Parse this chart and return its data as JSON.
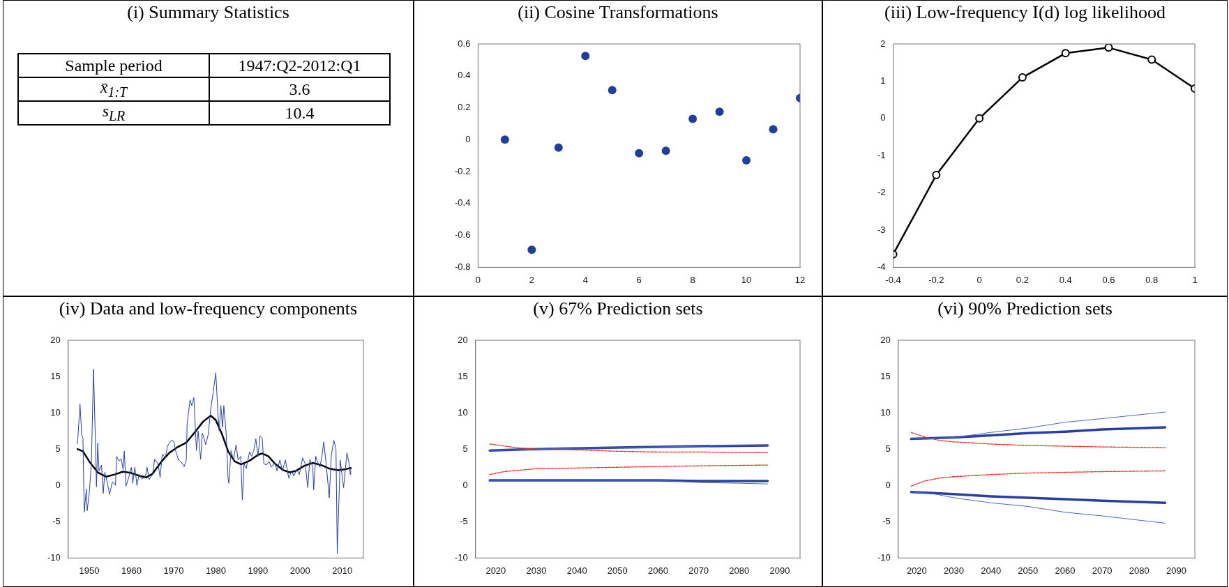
{
  "chart_data": [
    {
      "type": "other",
      "title": "(i) Summary Statistics",
      "annotations": [
        "Sample period",
        "1947:Q2-2012:Q1",
        "x̄$_{1:T}$",
        "3.6",
        "s$_{LR}$",
        "10.4"
      ]
    },
    {
      "type": "scatter",
      "title": "(ii) Cosine Transformations",
      "x": [
        1,
        2,
        3,
        4,
        5,
        6,
        7,
        8,
        9,
        10,
        11,
        12
      ],
      "marker": "circle",
      "xlim": [
        0,
        12
      ],
      "xticks": [
        0,
        2,
        4,
        6,
        8,
        10,
        12
      ],
      "ylim": [
        -0.8,
        0.6
      ],
      "yticks": [
        -0.8,
        -0.6,
        -0.4,
        -0.2,
        0,
        0.2,
        0.4,
        0.6
      ],
      "series": [
        {
          "color": "#1f3f99",
          "values": [
            0,
            -0.69,
            -0.05,
            0.525,
            0.31,
            -0.085,
            -0.07,
            0.13,
            0.175,
            -0.13,
            0.065,
            0.26
          ]
        }
      ]
    },
    {
      "type": "line",
      "title": "(iii) Low-frequency I(d) log likelihood",
      "x": [
        -0.4,
        -0.2,
        0,
        0.2,
        0.4,
        0.6,
        0.8,
        1
      ],
      "marker": "circle",
      "xlim": [
        -0.4,
        1
      ],
      "xticks": [
        -0.4,
        -0.2,
        0,
        0.2,
        0.4,
        0.6,
        0.8,
        1
      ],
      "ylim": [
        -4,
        2
      ],
      "yticks": [
        -4,
        -3,
        -2,
        -1,
        0,
        1,
        2
      ],
      "series": [
        {
          "color": "#000000",
          "values": [
            -3.65,
            -1.52,
            0,
            1.1,
            1.75,
            1.9,
            1.58,
            0.8
          ]
        }
      ]
    },
    {
      "type": "line",
      "title": "(iv) Data and low-frequency components",
      "xlim": [
        1945,
        2015
      ],
      "xticks": [
        1950,
        1960,
        1970,
        1980,
        1990,
        2000,
        2010
      ],
      "ylim": [
        -10,
        20
      ],
      "yticks": [
        -10,
        -5,
        0,
        5,
        10,
        15,
        20
      ],
      "series": [
        {
          "color": "#2940a0",
          "x": [
            1947.2,
            1947.8,
            1948.2,
            1948.5,
            1948.8,
            1949.3,
            1949.5,
            1950.0,
            1950.5,
            1951.0,
            1951.5,
            1951.7,
            1952.0,
            1952.3,
            1952.9,
            1953.3,
            1953.7,
            1954.3,
            1954.8,
            1955.5,
            1956.2,
            1956.5,
            1957.0,
            1957.6,
            1958.0,
            1958.3,
            1958.7,
            1959.3,
            1960.0,
            1960.3,
            1960.8,
            1961.3,
            1961.8,
            1962.5,
            1963.3,
            1963.7,
            1964.2,
            1965.0,
            1965.5,
            1966.3,
            1966.8,
            1967.3,
            1968.0,
            1968.6,
            1969.5,
            1970.0,
            1970.6,
            1971.2,
            1971.8,
            1972.5,
            1973.0,
            1973.2,
            1973.9,
            1974.3,
            1974.8,
            1975.4,
            1975.8,
            1976.4,
            1976.8,
            1977.2,
            1977.6,
            1978.2,
            1978.8,
            1979.3,
            1980.0,
            1980.5,
            1980.8,
            1981.2,
            1981.6,
            1981.9,
            1982.5,
            1982.9,
            1983.1,
            1983.6,
            1984.2,
            1984.8,
            1985.3,
            1985.9,
            1986.3,
            1986.7,
            1987.2,
            1988.0,
            1988.5,
            1989.0,
            1989.5,
            1990.0,
            1990.5,
            1991.0,
            1991.4,
            1992.0,
            1992.6,
            1993.2,
            1994.0,
            1994.5,
            1995.2,
            1995.8,
            1996.5,
            1997.3,
            1998.0,
            1998.5,
            1999.2,
            1999.8,
            2000.6,
            2001.2,
            2001.8,
            2002.3,
            2003.0,
            2003.2,
            2003.7,
            2004.1,
            2004.7,
            2005.2,
            2005.6,
            2006.2,
            2006.9,
            2007.4,
            2008.0,
            2008.5,
            2008.8,
            2009.5,
            2010.3,
            2011.1,
            2011.6,
            2011.9,
            2012.0
          ],
          "values": [
            5.7,
            11.2,
            7,
            6.5,
            -3.7,
            -0.5,
            -3.5,
            -1,
            3,
            16,
            5,
            -0.2,
            5.8,
            2,
            2.8,
            -1.1,
            1.8,
            0.3,
            -1.2,
            0.5,
            0,
            4,
            3.4,
            3.6,
            2.2,
            4.7,
            -0.1,
            1,
            2.5,
            0.3,
            2.5,
            0,
            1.5,
            0.9,
            1.2,
            2.5,
            0.8,
            1.5,
            3.6,
            3,
            1.1,
            4.3,
            3.8,
            5.5,
            6.2,
            6.1,
            4.5,
            3.5,
            3.2,
            2.6,
            3.5,
            8.5,
            11.8,
            11,
            12.1,
            4.8,
            7.5,
            3.6,
            7.2,
            6.5,
            5.6,
            7,
            10.5,
            12.5,
            15.5,
            10,
            7.5,
            11,
            8,
            11,
            6.8,
            1,
            0.3,
            4.8,
            3.5,
            5.6,
            3.5,
            4,
            -2,
            3,
            2.3,
            4.6,
            4,
            4.8,
            6.4,
            4,
            6.8,
            6.5,
            3,
            2.8,
            3.3,
            2.5,
            3.2,
            2,
            3.5,
            2,
            3.5,
            1,
            2,
            1.3,
            2.2,
            1.5,
            3.8,
            3,
            -0.3,
            3.6,
            2.5,
            -0.6,
            4,
            3.2,
            2.5,
            4.2,
            6,
            2.8,
            -1.7,
            4.2,
            6.2,
            5,
            -9.4,
            3.5,
            -0.3,
            4.5,
            3,
            1.5,
            2.3
          ]
        },
        {
          "color": "#000000",
          "x": [
            1947.2,
            1948.5,
            1950,
            1952,
            1954,
            1956,
            1958,
            1960,
            1962,
            1963.5,
            1965,
            1967,
            1969,
            1971,
            1973,
            1975,
            1977,
            1978.8,
            1980,
            1981.5,
            1983,
            1984.5,
            1986,
            1988,
            1990,
            1991,
            1992.5,
            1994,
            1996,
            1997.5,
            1999,
            2001,
            2003,
            2005,
            2007,
            2009,
            2010.5,
            2012
          ],
          "values": [
            5,
            4.7,
            3.3,
            1.8,
            1.2,
            1.5,
            1.9,
            1.7,
            1.3,
            1.1,
            1.6,
            3.2,
            4.5,
            5.3,
            5.9,
            7.3,
            8.8,
            9.6,
            9,
            7,
            4.6,
            3.3,
            2.9,
            3.4,
            4.2,
            4.4,
            4,
            3,
            2.1,
            1.8,
            2,
            2.7,
            3.1,
            2.8,
            2.3,
            2.1,
            2.2,
            2.4
          ]
        }
      ]
    },
    {
      "type": "line",
      "title": "(v) 67% Prediction sets",
      "xlim": [
        2015,
        2095
      ],
      "xticks": [
        2020,
        2030,
        2040,
        2050,
        2060,
        2070,
        2080,
        2090
      ],
      "ylim": [
        -10,
        20
      ],
      "yticks": [
        -10,
        -5,
        0,
        5,
        10,
        15,
        20
      ],
      "series": [
        {
          "color": "#2940a0",
          "x": [
            2018.5,
            2030,
            2050,
            2070,
            2087
          ],
          "values": [
            4.8,
            5,
            5.2,
            5.4,
            5.5
          ]
        },
        {
          "color": "#2940a0",
          "x": [
            2018.5,
            2040,
            2060,
            2070,
            2087
          ],
          "values": [
            0.7,
            0.7,
            0.7,
            0.6,
            0.6
          ]
        },
        {
          "color": "#4a66c8",
          "x": [
            2018.5,
            2030,
            2050,
            2070,
            2087
          ],
          "values": [
            4.8,
            5,
            5.2,
            5.4,
            5.5
          ]
        },
        {
          "color": "#4a66c8",
          "x": [
            2018.5,
            2040,
            2060,
            2070,
            2080,
            2087
          ],
          "values": [
            0.7,
            0.7,
            0.7,
            0.4,
            0.3,
            0.2
          ]
        },
        {
          "color": "#e8321e",
          "line_style": "dashed",
          "x": [
            2018.5,
            2025,
            2030,
            2040,
            2050,
            2060,
            2070,
            2087
          ],
          "values": [
            5.7,
            5.2,
            5,
            4.9,
            4.7,
            4.6,
            4.6,
            4.5
          ]
        },
        {
          "color": "#e8321e",
          "line_style": "dashed",
          "x": [
            2018.5,
            2022,
            2026,
            2030,
            2040,
            2050,
            2060,
            2070,
            2087
          ],
          "values": [
            1.5,
            1.9,
            2.1,
            2.3,
            2.4,
            2.5,
            2.6,
            2.7,
            2.8
          ]
        }
      ]
    },
    {
      "type": "line",
      "title": "(vi) 90% Prediction sets",
      "xlim": [
        2015,
        2095
      ],
      "xticks": [
        2020,
        2030,
        2040,
        2050,
        2060,
        2070,
        2080,
        2090
      ],
      "ylim": [
        -10,
        20
      ],
      "yticks": [
        -10,
        -5,
        0,
        5,
        10,
        15,
        20
      ],
      "series": [
        {
          "color": "#2940a0",
          "x": [
            2018.5,
            2030,
            2040,
            2050,
            2060,
            2070,
            2087
          ],
          "values": [
            6.4,
            6.6,
            6.9,
            7.2,
            7.4,
            7.7,
            8
          ]
        },
        {
          "color": "#2940a0",
          "x": [
            2018.5,
            2030,
            2040,
            2050,
            2060,
            2070,
            2087
          ],
          "values": [
            -0.9,
            -1.2,
            -1.5,
            -1.7,
            -1.9,
            -2.1,
            -2.4
          ]
        },
        {
          "color": "#4a66c8",
          "x": [
            2018.5,
            2030,
            2040,
            2050,
            2055,
            2060,
            2070,
            2087
          ],
          "values": [
            6.4,
            6.6,
            7.3,
            7.9,
            8.3,
            8.7,
            9.2,
            10.1
          ]
        },
        {
          "color": "#4a66c8",
          "x": [
            2018.5,
            2025,
            2030,
            2040,
            2050,
            2055,
            2060,
            2070,
            2087
          ],
          "values": [
            -0.9,
            -1.2,
            -1.7,
            -2.4,
            -2.9,
            -3.3,
            -3.7,
            -4.2,
            -5.2
          ]
        },
        {
          "color": "#e8321e",
          "line_style": "dashed",
          "x": [
            2018.5,
            2022,
            2026,
            2030,
            2040,
            2050,
            2060,
            2070,
            2087
          ],
          "values": [
            7.3,
            6.7,
            6.2,
            6,
            5.7,
            5.5,
            5.4,
            5.3,
            5.2
          ]
        },
        {
          "color": "#e8321e",
          "line_style": "dashed",
          "x": [
            2018.5,
            2022,
            2026,
            2030,
            2040,
            2050,
            2060,
            2070,
            2087
          ],
          "values": [
            -0.1,
            0.6,
            1,
            1.2,
            1.5,
            1.7,
            1.8,
            1.9,
            2
          ]
        }
      ]
    }
  ]
}
